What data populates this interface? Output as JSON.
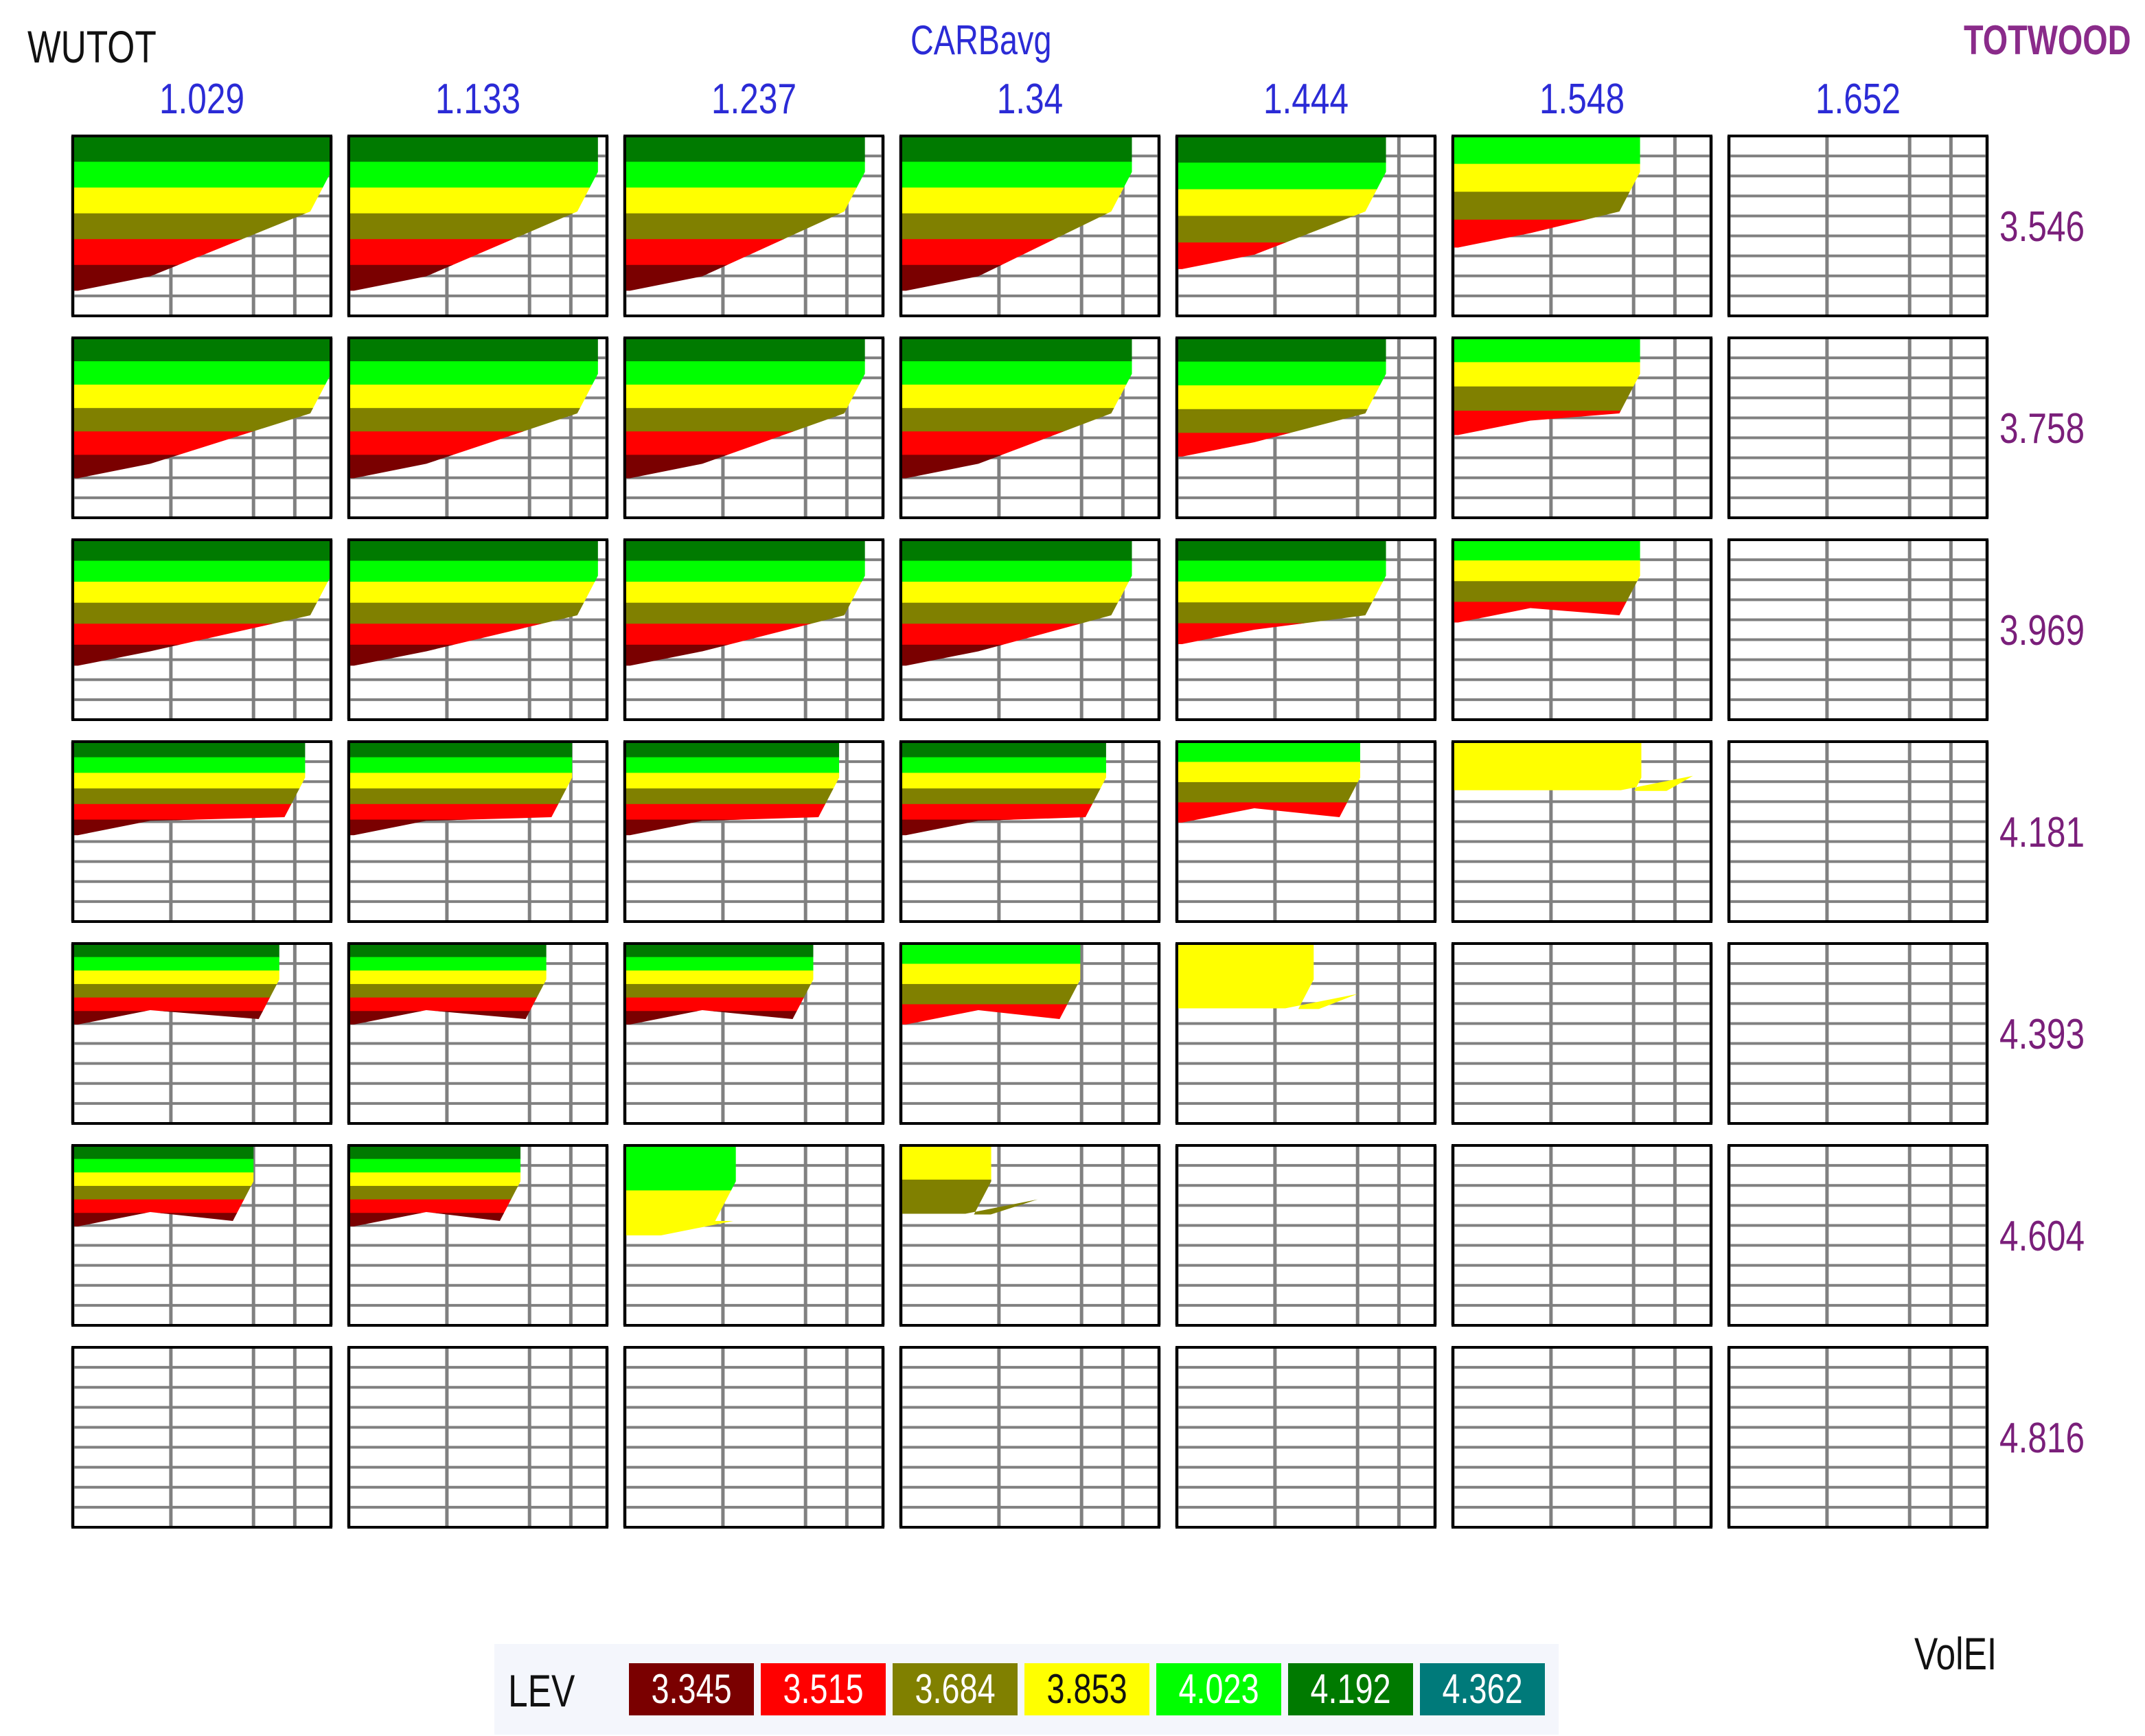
{
  "chart_data": {
    "type": "heatmap",
    "title": "",
    "xlabel": "CARBavg",
    "ylabel": "WUTOT",
    "panel_row_label": "TOTWOOD",
    "inner_axis_label": "VolEI",
    "column_values": [
      "1.029",
      "1.133",
      "1.237",
      "1.34",
      "1.444",
      "1.548",
      "1.652"
    ],
    "row_values": [
      "3.546",
      "3.758",
      "3.969",
      "4.181",
      "4.393",
      "4.604",
      "4.816"
    ],
    "legend_title": "LEV",
    "legend_levels": [
      {
        "label": "3.345",
        "color": "#7a0000"
      },
      {
        "label": "3.515",
        "color": "#ff0000"
      },
      {
        "label": "3.684",
        "color": "#808000"
      },
      {
        "label": "3.853",
        "color": "#ffff00"
      },
      {
        "label": "4.023",
        "color": "#00ff00"
      },
      {
        "label": "4.192",
        "color": "#007a00"
      },
      {
        "label": "4.362",
        "color": "#007a7a"
      }
    ],
    "grid_color": "#808080",
    "legend_placement": "bottom-center"
  }
}
